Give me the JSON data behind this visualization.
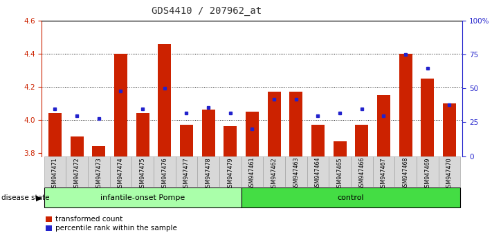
{
  "title": "GDS4410 / 207962_at",
  "samples": [
    "GSM947471",
    "GSM947472",
    "GSM947473",
    "GSM947474",
    "GSM947475",
    "GSM947476",
    "GSM947477",
    "GSM947478",
    "GSM947479",
    "GSM947461",
    "GSM947462",
    "GSM947463",
    "GSM947464",
    "GSM947465",
    "GSM947466",
    "GSM947467",
    "GSM947468",
    "GSM947469",
    "GSM947470"
  ],
  "bar_values": [
    4.04,
    3.9,
    3.84,
    4.4,
    4.04,
    4.46,
    3.97,
    4.06,
    3.96,
    4.05,
    4.17,
    4.17,
    3.97,
    3.87,
    3.97,
    4.15,
    4.4,
    4.25,
    4.1
  ],
  "percentile_values": [
    35,
    30,
    28,
    48,
    35,
    50,
    32,
    36,
    32,
    20,
    42,
    42,
    30,
    32,
    35,
    30,
    75,
    65,
    38
  ],
  "y_min": 3.78,
  "y_max": 4.6,
  "y_ticks": [
    3.8,
    4.0,
    4.2,
    4.4,
    4.6
  ],
  "y_right_ticks": [
    0,
    25,
    50,
    75,
    100
  ],
  "y_right_labels": [
    "0",
    "25",
    "50",
    "75",
    "100%"
  ],
  "bar_color": "#cc2200",
  "dot_color": "#2222cc",
  "group1_label": "infantile-onset Pompe",
  "group2_label": "control",
  "group1_color": "#aaffaa",
  "group2_color": "#44dd44",
  "disease_state_label": "disease state",
  "legend_bar_label": "transformed count",
  "legend_dot_label": "percentile rank within the sample",
  "title_color": "#333333",
  "ytick_color_left": "#cc2200",
  "ytick_color_right": "#2222cc",
  "n_group1": 9,
  "n_group2": 10
}
